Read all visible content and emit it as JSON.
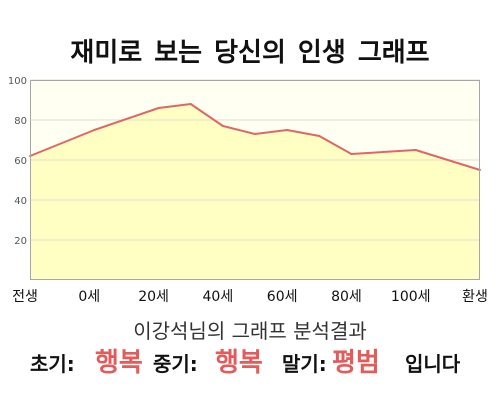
{
  "colors": {
    "line": "#e06666",
    "fill": "#ffffc4",
    "plot_background": "#fffff2",
    "grid": "#e0e0cc",
    "axis": "#a6a6a6",
    "result": "#e35b5b"
  },
  "chart_data": {
    "type": "area",
    "title": "재미로 보는 당신의 인생 그래프",
    "x_tick_labels": [
      "전생",
      "0세",
      "20세",
      "40세",
      "60세",
      "80세",
      "100세",
      "환생"
    ],
    "y_ticks": [
      20,
      40,
      60,
      80,
      100
    ],
    "ylim": [
      0,
      100
    ],
    "grid": true,
    "previous_life_value": 62,
    "values_by_age": [
      {
        "age": 0,
        "value": 75
      },
      {
        "age": 20,
        "value": 86
      },
      {
        "age": 30,
        "value": 88
      },
      {
        "age": 40,
        "value": 77
      },
      {
        "age": 50,
        "value": 73
      },
      {
        "age": 60,
        "value": 75
      },
      {
        "age": 70,
        "value": 72
      },
      {
        "age": 80,
        "value": 63
      },
      {
        "age": 100,
        "value": 65
      }
    ],
    "reincarnation_value": 55
  },
  "analysis": {
    "heading": "이강석님의 그래프 분석결과",
    "phases": [
      {
        "label": "초기:",
        "result": "행복"
      },
      {
        "label": "중기:",
        "result": "행복"
      },
      {
        "label": "말기:",
        "result": "평범"
      }
    ],
    "closing": "입니다"
  }
}
